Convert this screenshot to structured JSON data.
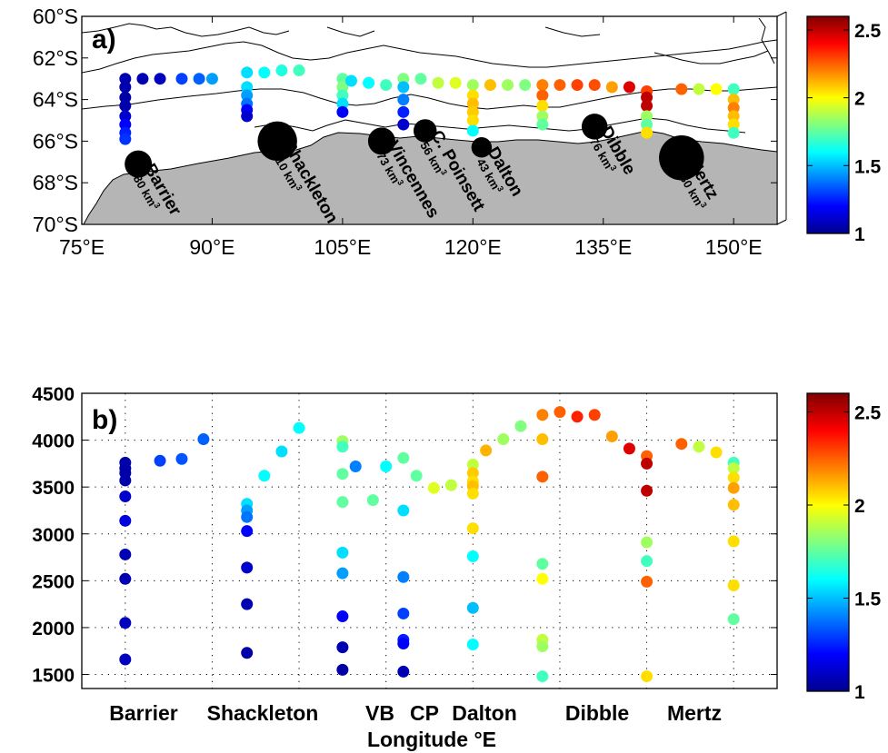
{
  "chart_data": [
    {
      "type": "scatter",
      "panel_label": "a)",
      "x_ticks": [
        "75°E",
        "90°E",
        "105°E",
        "120°E",
        "135°E",
        "150°E"
      ],
      "y_ticks": [
        "60°S",
        "62°S",
        "64°S",
        "66°S",
        "68°S",
        "70°S"
      ],
      "xlim": [
        75,
        155
      ],
      "ylim": [
        -70,
        -60
      ],
      "color_scale": {
        "min": 1,
        "max": 2.6,
        "colormap": "jet"
      },
      "series": [
        {
          "values": [
            {
              "lon": 80,
              "lat": -63.0,
              "v": 1.08
            },
            {
              "lon": 80,
              "lat": -63.4,
              "v": 1.07
            },
            {
              "lon": 80,
              "lat": -63.9,
              "v": 1.06
            },
            {
              "lon": 80,
              "lat": -64.3,
              "v": 1.07
            },
            {
              "lon": 80,
              "lat": -64.8,
              "v": 1.12
            },
            {
              "lon": 80,
              "lat": -65.2,
              "v": 1.2
            },
            {
              "lon": 80,
              "lat": -65.6,
              "v": 1.25
            },
            {
              "lon": 80,
              "lat": -65.9,
              "v": 1.28
            },
            {
              "lon": 82,
              "lat": -63.0,
              "v": 1.08
            },
            {
              "lon": 84,
              "lat": -63.0,
              "v": 1.1
            },
            {
              "lon": 86.5,
              "lat": -63.0,
              "v": 1.3
            },
            {
              "lon": 88.5,
              "lat": -63.0,
              "v": 1.35
            },
            {
              "lon": 90,
              "lat": -63.0,
              "v": 1.45
            },
            {
              "lon": 94,
              "lat": -63.4,
              "v": 1.55
            },
            {
              "lon": 94,
              "lat": -63.8,
              "v": 1.45
            },
            {
              "lon": 94,
              "lat": -64.2,
              "v": 1.38
            },
            {
              "lon": 94,
              "lat": -64.5,
              "v": 1.2
            },
            {
              "lon": 94,
              "lat": -64.8,
              "v": 1.12
            },
            {
              "lon": 94,
              "lat": -62.7,
              "v": 1.55
            },
            {
              "lon": 96,
              "lat": -62.7,
              "v": 1.6
            },
            {
              "lon": 98,
              "lat": -62.6,
              "v": 1.65
            },
            {
              "lon": 100,
              "lat": -62.6,
              "v": 1.7
            },
            {
              "lon": 105,
              "lat": -63.0,
              "v": 1.75
            },
            {
              "lon": 105,
              "lat": -63.4,
              "v": 1.8
            },
            {
              "lon": 105,
              "lat": -63.8,
              "v": 1.7
            },
            {
              "lon": 105,
              "lat": -64.2,
              "v": 1.55
            },
            {
              "lon": 105,
              "lat": -64.6,
              "v": 1.2
            },
            {
              "lon": 106,
              "lat": -63.1,
              "v": 1.55
            },
            {
              "lon": 108,
              "lat": -63.2,
              "v": 1.6
            },
            {
              "lon": 110,
              "lat": -63.3,
              "v": 1.7
            },
            {
              "lon": 112,
              "lat": -63.0,
              "v": 1.8
            },
            {
              "lon": 112,
              "lat": -63.4,
              "v": 1.5
            },
            {
              "lon": 112,
              "lat": -64.0,
              "v": 1.4
            },
            {
              "lon": 112,
              "lat": -64.6,
              "v": 1.25
            },
            {
              "lon": 112,
              "lat": -65.2,
              "v": 1.12
            },
            {
              "lon": 114,
              "lat": -63.0,
              "v": 1.75
            },
            {
              "lon": 116,
              "lat": -63.2,
              "v": 1.9
            },
            {
              "lon": 118,
              "lat": -63.2,
              "v": 1.95
            },
            {
              "lon": 120,
              "lat": -63.3,
              "v": 1.85
            },
            {
              "lon": 120,
              "lat": -63.8,
              "v": 2.05
            },
            {
              "lon": 120,
              "lat": -64.2,
              "v": 2.1
            },
            {
              "lon": 120,
              "lat": -64.6,
              "v": 2.08
            },
            {
              "lon": 120,
              "lat": -65.0,
              "v": 2.05
            },
            {
              "lon": 120,
              "lat": -65.5,
              "v": 1.6
            },
            {
              "lon": 122,
              "lat": -63.3,
              "v": 2.1
            },
            {
              "lon": 124,
              "lat": -63.3,
              "v": 1.85
            },
            {
              "lon": 126,
              "lat": -63.3,
              "v": 1.8
            },
            {
              "lon": 128,
              "lat": -63.3,
              "v": 2.2
            },
            {
              "lon": 128,
              "lat": -63.8,
              "v": 2.25
            },
            {
              "lon": 128,
              "lat": -64.3,
              "v": 2.05
            },
            {
              "lon": 128,
              "lat": -64.8,
              "v": 1.85
            },
            {
              "lon": 128,
              "lat": -65.2,
              "v": 1.75
            },
            {
              "lon": 130,
              "lat": -63.3,
              "v": 2.25
            },
            {
              "lon": 132,
              "lat": -63.3,
              "v": 2.3
            },
            {
              "lon": 134,
              "lat": -63.3,
              "v": 2.28
            },
            {
              "lon": 136,
              "lat": -63.4,
              "v": 2.15
            },
            {
              "lon": 138,
              "lat": -63.4,
              "v": 2.45
            },
            {
              "lon": 140,
              "lat": -63.6,
              "v": 2.3
            },
            {
              "lon": 140,
              "lat": -63.9,
              "v": 2.5
            },
            {
              "lon": 140,
              "lat": -64.3,
              "v": 2.5
            },
            {
              "lon": 140,
              "lat": -64.8,
              "v": 1.85
            },
            {
              "lon": 140,
              "lat": -65.2,
              "v": 1.75
            },
            {
              "lon": 140,
              "lat": -65.6,
              "v": 2.05
            },
            {
              "lon": 144,
              "lat": -63.5,
              "v": 2.25
            },
            {
              "lon": 146,
              "lat": -63.5,
              "v": 1.9
            },
            {
              "lon": 148,
              "lat": -63.5,
              "v": 2.0
            },
            {
              "lon": 150,
              "lat": -63.5,
              "v": 1.7
            },
            {
              "lon": 150,
              "lat": -64.0,
              "v": 2.1
            },
            {
              "lon": 150,
              "lat": -64.4,
              "v": 2.2
            },
            {
              "lon": 150,
              "lat": -64.8,
              "v": 2.1
            },
            {
              "lon": 150,
              "lat": -65.2,
              "v": 2.05
            },
            {
              "lon": 150,
              "lat": -65.6,
              "v": 1.7
            }
          ]
        }
      ],
      "ice_shelves": [
        {
          "name": "Barrier",
          "volume": "80 km",
          "lon": 81.5,
          "lat": -67.1,
          "size": 1.0
        },
        {
          "name": "Shackleton",
          "volume": "110 km",
          "lon": 97.5,
          "lat": -66.0,
          "size": 1.45
        },
        {
          "name": "Vincennes",
          "volume": "73 km",
          "lon": 109.5,
          "lat": -66.0,
          "size": 1.0
        },
        {
          "name": "C. Poinsett",
          "volume": "56 km",
          "lon": 114.5,
          "lat": -65.5,
          "size": 0.85
        },
        {
          "name": "Dalton",
          "volume": "43 km",
          "lon": 121,
          "lat": -66.3,
          "size": 0.75
        },
        {
          "name": "Dibble",
          "volume": "76 km",
          "lon": 134,
          "lat": -65.3,
          "size": 0.95
        },
        {
          "name": "Mertz",
          "volume": "180 km",
          "lon": 144,
          "lat": -66.8,
          "size": 1.65
        }
      ],
      "superscript_3": "3"
    },
    {
      "type": "scatter",
      "panel_label": "b)",
      "xlabel": "Longitude °E",
      "y_ticks": [
        "1500",
        "2000",
        "2500",
        "3000",
        "3500",
        "4000",
        "4500"
      ],
      "x_labels": [
        "Barrier",
        "Shackleton",
        "VB",
        "CP",
        "Dalton",
        "Dibble",
        "Mertz"
      ],
      "xlim": [
        75,
        155
      ],
      "ylim": [
        1350,
        4500
      ],
      "color_scale": {
        "min": 1,
        "max": 2.6,
        "colormap": "jet"
      },
      "series": [
        {
          "values": [
            {
              "lon": 80,
              "depth": 3760,
              "v": 1.06
            },
            {
              "lon": 80,
              "depth": 3700,
              "v": 1.07
            },
            {
              "lon": 80,
              "depth": 3650,
              "v": 1.06
            },
            {
              "lon": 80,
              "depth": 3570,
              "v": 1.07
            },
            {
              "lon": 80,
              "depth": 3400,
              "v": 1.12
            },
            {
              "lon": 80,
              "depth": 3140,
              "v": 1.15
            },
            {
              "lon": 80,
              "depth": 2780,
              "v": 1.08
            },
            {
              "lon": 80,
              "depth": 2520,
              "v": 1.08
            },
            {
              "lon": 80,
              "depth": 2050,
              "v": 1.1
            },
            {
              "lon": 80,
              "depth": 1660,
              "v": 1.1
            },
            {
              "lon": 84,
              "depth": 3780,
              "v": 1.3
            },
            {
              "lon": 86.5,
              "depth": 3800,
              "v": 1.33
            },
            {
              "lon": 89,
              "depth": 4010,
              "v": 1.35
            },
            {
              "lon": 94,
              "depth": 3320,
              "v": 1.55
            },
            {
              "lon": 94,
              "depth": 3250,
              "v": 1.45
            },
            {
              "lon": 94,
              "depth": 3180,
              "v": 1.38
            },
            {
              "lon": 94,
              "depth": 3030,
              "v": 1.2
            },
            {
              "lon": 94,
              "depth": 2640,
              "v": 1.12
            },
            {
              "lon": 94,
              "depth": 2250,
              "v": 1.08
            },
            {
              "lon": 94,
              "depth": 1730,
              "v": 1.06
            },
            {
              "lon": 96,
              "depth": 3620,
              "v": 1.6
            },
            {
              "lon": 98,
              "depth": 3880,
              "v": 1.55
            },
            {
              "lon": 100,
              "depth": 4130,
              "v": 1.6
            },
            {
              "lon": 105,
              "depth": 3990,
              "v": 1.85
            },
            {
              "lon": 105,
              "depth": 3930,
              "v": 1.7
            },
            {
              "lon": 105,
              "depth": 3640,
              "v": 1.75
            },
            {
              "lon": 105,
              "depth": 3340,
              "v": 1.75
            },
            {
              "lon": 105,
              "depth": 2800,
              "v": 1.55
            },
            {
              "lon": 105,
              "depth": 2580,
              "v": 1.45
            },
            {
              "lon": 105,
              "depth": 2120,
              "v": 1.2
            },
            {
              "lon": 105,
              "depth": 1790,
              "v": 1.08
            },
            {
              "lon": 105,
              "depth": 1550,
              "v": 1.06
            },
            {
              "lon": 106.5,
              "depth": 3720,
              "v": 1.4
            },
            {
              "lon": 108.5,
              "depth": 3360,
              "v": 1.75
            },
            {
              "lon": 110,
              "depth": 3720,
              "v": 1.6
            },
            {
              "lon": 112,
              "depth": 3810,
              "v": 1.75
            },
            {
              "lon": 112,
              "depth": 3250,
              "v": 1.55
            },
            {
              "lon": 112,
              "depth": 2540,
              "v": 1.4
            },
            {
              "lon": 112,
              "depth": 2150,
              "v": 1.3
            },
            {
              "lon": 112,
              "depth": 1870,
              "v": 1.25
            },
            {
              "lon": 112,
              "depth": 1830,
              "v": 1.2
            },
            {
              "lon": 112,
              "depth": 1530,
              "v": 1.08
            },
            {
              "lon": 113.5,
              "depth": 3620,
              "v": 1.75
            },
            {
              "lon": 115.5,
              "depth": 3490,
              "v": 1.95
            },
            {
              "lon": 117.5,
              "depth": 3520,
              "v": 1.9
            },
            {
              "lon": 120,
              "depth": 3740,
              "v": 1.9
            },
            {
              "lon": 120,
              "depth": 3650,
              "v": 2.08
            },
            {
              "lon": 120,
              "depth": 3560,
              "v": 2.05
            },
            {
              "lon": 120,
              "depth": 3510,
              "v": 2.1
            },
            {
              "lon": 120,
              "depth": 3430,
              "v": 2.05
            },
            {
              "lon": 120,
              "depth": 3060,
              "v": 2.05
            },
            {
              "lon": 120,
              "depth": 2760,
              "v": 1.6
            },
            {
              "lon": 120,
              "depth": 2210,
              "v": 1.5
            },
            {
              "lon": 120,
              "depth": 1820,
              "v": 1.6
            },
            {
              "lon": 121.5,
              "depth": 3890,
              "v": 2.12
            },
            {
              "lon": 123.5,
              "depth": 4010,
              "v": 1.85
            },
            {
              "lon": 125.5,
              "depth": 4150,
              "v": 1.8
            },
            {
              "lon": 128,
              "depth": 4270,
              "v": 2.2
            },
            {
              "lon": 128,
              "depth": 4010,
              "v": 2.1
            },
            {
              "lon": 128,
              "depth": 3610,
              "v": 2.25
            },
            {
              "lon": 128,
              "depth": 2680,
              "v": 1.75
            },
            {
              "lon": 128,
              "depth": 2520,
              "v": 2.0
            },
            {
              "lon": 128,
              "depth": 1870,
              "v": 1.9
            },
            {
              "lon": 128,
              "depth": 1800,
              "v": 1.85
            },
            {
              "lon": 128,
              "depth": 1480,
              "v": 1.7
            },
            {
              "lon": 130,
              "depth": 4300,
              "v": 2.25
            },
            {
              "lon": 132,
              "depth": 4250,
              "v": 2.35
            },
            {
              "lon": 134,
              "depth": 4270,
              "v": 2.3
            },
            {
              "lon": 136,
              "depth": 4040,
              "v": 2.15
            },
            {
              "lon": 138,
              "depth": 3910,
              "v": 2.45
            },
            {
              "lon": 140,
              "depth": 3830,
              "v": 2.25
            },
            {
              "lon": 140,
              "depth": 3750,
              "v": 2.5
            },
            {
              "lon": 140,
              "depth": 3460,
              "v": 2.5
            },
            {
              "lon": 140,
              "depth": 2910,
              "v": 1.85
            },
            {
              "lon": 140,
              "depth": 2710,
              "v": 1.7
            },
            {
              "lon": 140,
              "depth": 2490,
              "v": 2.25
            },
            {
              "lon": 140,
              "depth": 1480,
              "v": 2.05
            },
            {
              "lon": 144,
              "depth": 3960,
              "v": 2.25
            },
            {
              "lon": 146,
              "depth": 3930,
              "v": 1.9
            },
            {
              "lon": 148,
              "depth": 3870,
              "v": 2.05
            },
            {
              "lon": 150,
              "depth": 3760,
              "v": 1.7
            },
            {
              "lon": 150,
              "depth": 3700,
              "v": 1.9
            },
            {
              "lon": 150,
              "depth": 3600,
              "v": 2.05
            },
            {
              "lon": 150,
              "depth": 3490,
              "v": 2.15
            },
            {
              "lon": 150,
              "depth": 3310,
              "v": 2.1
            },
            {
              "lon": 150,
              "depth": 2920,
              "v": 2.05
            },
            {
              "lon": 150,
              "depth": 2450,
              "v": 2.05
            },
            {
              "lon": 150,
              "depth": 2090,
              "v": 1.75
            }
          ]
        }
      ]
    }
  ],
  "colorbars": [
    {
      "tick_labels": [
        "2.5",
        "2",
        "1.5",
        "1"
      ]
    },
    {
      "tick_labels": [
        "2.5",
        "2",
        "1.5",
        "1"
      ]
    }
  ]
}
